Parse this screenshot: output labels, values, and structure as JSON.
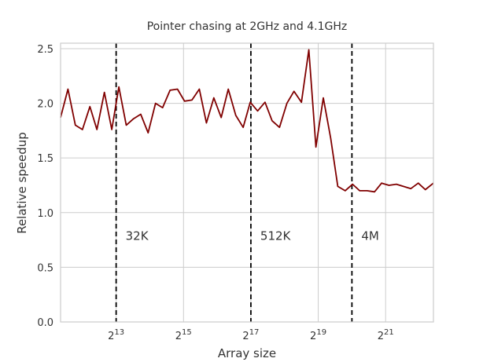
{
  "chart_data": {
    "type": "line",
    "title": "Pointer chasing at 2GHz and 4.1GHz",
    "xlabel": "Array size",
    "ylabel": "Relative speedup",
    "x_scale": "log2",
    "xlim_log2": [
      11.35,
      22.42
    ],
    "ylim": [
      0,
      2.55
    ],
    "x_ticks": [
      {
        "exp": 13,
        "base": "2",
        "sup": "13"
      },
      {
        "exp": 15,
        "base": "2",
        "sup": "15"
      },
      {
        "exp": 17,
        "base": "2",
        "sup": "17"
      },
      {
        "exp": 19,
        "base": "2",
        "sup": "19"
      },
      {
        "exp": 21,
        "base": "2",
        "sup": "21"
      }
    ],
    "y_ticks": [
      {
        "value": 0.0,
        "label": "0.0"
      },
      {
        "value": 0.5,
        "label": "0.5"
      },
      {
        "value": 1.0,
        "label": "1.0"
      },
      {
        "value": 1.5,
        "label": "1.5"
      },
      {
        "value": 2.0,
        "label": "2.0"
      },
      {
        "value": 2.5,
        "label": "2.5"
      }
    ],
    "grid": true,
    "series": [
      {
        "color": "#800000",
        "x_log2": [
          11.35,
          11.57,
          11.79,
          12.0,
          12.22,
          12.43,
          12.65,
          12.87,
          13.08,
          13.3,
          13.52,
          13.73,
          13.95,
          14.17,
          14.38,
          14.6,
          14.82,
          15.03,
          15.25,
          15.47,
          15.68,
          15.9,
          16.12,
          16.33,
          16.55,
          16.77,
          16.98,
          17.2,
          17.42,
          17.63,
          17.85,
          18.07,
          18.28,
          18.5,
          18.72,
          18.93,
          19.15,
          19.37,
          19.58,
          19.8,
          20.02,
          20.23,
          20.45,
          20.67,
          20.88,
          21.1,
          21.32,
          21.53,
          21.75,
          21.97,
          22.18,
          22.42
        ],
        "y": [
          1.87,
          2.13,
          1.8,
          1.76,
          1.97,
          1.76,
          2.1,
          1.76,
          2.15,
          1.8,
          1.86,
          1.9,
          1.73,
          2.0,
          1.96,
          2.12,
          2.13,
          2.02,
          2.03,
          2.13,
          1.82,
          2.05,
          1.87,
          2.13,
          1.89,
          1.78,
          2.01,
          1.93,
          2.01,
          1.84,
          1.78,
          2.0,
          2.11,
          2.01,
          2.49,
          1.6,
          2.05,
          1.68,
          1.24,
          1.2,
          1.26,
          1.2,
          1.2,
          1.19,
          1.27,
          1.25,
          1.26,
          1.24,
          1.22,
          1.27,
          1.21,
          1.27
        ]
      }
    ],
    "vlines": [
      {
        "exp": 13,
        "label": "32K"
      },
      {
        "exp": 17,
        "label": "512K"
      },
      {
        "exp": 20,
        "label": "4M"
      }
    ]
  }
}
